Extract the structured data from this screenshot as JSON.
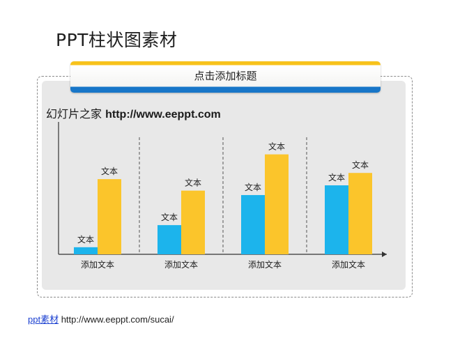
{
  "page": {
    "title": "PPT柱状图素材",
    "header_label": "点击添加标题",
    "subtitle_cn": "幻灯片之家",
    "subtitle_url": "http://www.eeppt.com"
  },
  "footer": {
    "link_label": "ppt素材",
    "url": "http://www.eeppt.com/sucai/"
  },
  "chart_data": {
    "type": "bar",
    "categories": [
      "添加文本",
      "添加文本",
      "添加文本",
      "添加文本"
    ],
    "series": [
      {
        "values": [
          8,
          33,
          67,
          78
        ],
        "color": "#1cb4ec",
        "labels": [
          "文本",
          "文本",
          "文本",
          "文本"
        ]
      },
      {
        "values": [
          85,
          72,
          113,
          92
        ],
        "color": "#fbc52b",
        "labels": [
          "文本",
          "文本",
          "文本",
          "文本"
        ]
      }
    ],
    "ylim": [
      0,
      130
    ],
    "grid": false,
    "group_separators": true
  }
}
